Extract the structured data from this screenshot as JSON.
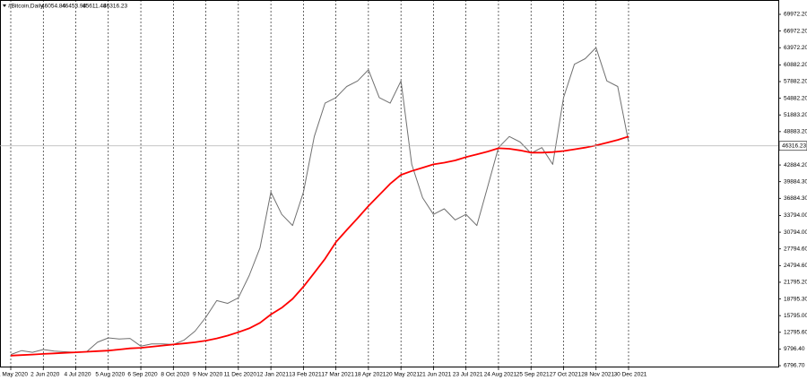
{
  "chart_data": {
    "type": "line",
    "title": "#Bitcoin,Daily",
    "ohlc_values": [
      46054.84,
      46453.98,
      45611.48,
      46316.23
    ],
    "categories": [
      "1 May 2020",
      null,
      null,
      "2 Jun 2020",
      null,
      null,
      "4 Jul 2020",
      null,
      null,
      "5 Aug 2020",
      null,
      null,
      "6 Sep 2020",
      null,
      null,
      "8 Oct 2020",
      null,
      null,
      "9 Nov 2020",
      null,
      null,
      "11 Dec 2020",
      null,
      null,
      "12 Jan 2021",
      null,
      null,
      "13 Feb 2021",
      null,
      null,
      "17 Mar 2021",
      null,
      null,
      "18 Apr 2021",
      null,
      null,
      "20 May 2021",
      null,
      null,
      "21 Jun 2021",
      null,
      null,
      "23 Jul 2021",
      null,
      null,
      "24 Aug 2021",
      null,
      null,
      "25 Sep 2021",
      null,
      null,
      "27 Oct 2021",
      null,
      null,
      "28 Nov 2021",
      null,
      null,
      "30 Dec 2021"
    ],
    "series": [
      {
        "color": "#707070",
        "values": [
          8800,
          9500,
          9200,
          9700,
          9400,
          9300,
          9200,
          9300,
          11000,
          11800,
          11600,
          11700,
          10300,
          10700,
          10700,
          10600,
          11400,
          13000,
          15500,
          18500,
          18000,
          19000,
          23000,
          28000,
          38000,
          34000,
          32000,
          38000,
          48000,
          54000,
          55000,
          57000,
          58000,
          60000,
          55000,
          54000,
          58000,
          43000,
          37000,
          34000,
          35000,
          33000,
          34000,
          32000,
          39000,
          46000,
          48000,
          47000,
          45000,
          46000,
          43000,
          55000,
          61000,
          62000,
          64000,
          58000,
          57000,
          47000
        ]
      },
      {
        "color": "#ff0000",
        "values": [
          8600,
          8700,
          8800,
          8900,
          9000,
          9100,
          9200,
          9300,
          9400,
          9500,
          9700,
          9900,
          10000,
          10200,
          10400,
          10600,
          10800,
          11000,
          11300,
          11700,
          12200,
          12800,
          13500,
          14500,
          16000,
          17200,
          18800,
          21000,
          23500,
          26000,
          29000,
          31200,
          33300,
          35500,
          37500,
          39500,
          41100,
          41800,
          42400,
          43000,
          43300,
          43700,
          44300,
          44800,
          45300,
          45900,
          45800,
          45500,
          45100,
          45100,
          45200,
          45400,
          45700,
          46000,
          46400,
          46900,
          47400,
          48000
        ]
      }
    ],
    "current_price": {
      "value": 46316.23,
      "label": "46316.23"
    },
    "ylim": [
      6474,
      72551
    ],
    "yticks": [
      {
        "value": 69972.2,
        "label": "69972.20"
      },
      {
        "value": 66972.2,
        "label": "66972.20"
      },
      {
        "value": 63972.2,
        "label": "63972.20"
      },
      {
        "value": 60882.2,
        "label": "60882.20"
      },
      {
        "value": 57882.2,
        "label": "57882.20"
      },
      {
        "value": 54882.2,
        "label": "54882.20"
      },
      {
        "value": 51883.2,
        "label": "51883.20"
      },
      {
        "value": 48883.2,
        "label": "48883.20"
      },
      {
        "value": 42884.2,
        "label": "42884.20"
      },
      {
        "value": 39884.3,
        "label": "39884.30"
      },
      {
        "value": 36884.3,
        "label": "36884.30"
      },
      {
        "value": 33794.0,
        "label": "33794.00"
      },
      {
        "value": 30794.0,
        "label": "30794.00"
      },
      {
        "value": 27794.6,
        "label": "27794.60"
      },
      {
        "value": 24794.6,
        "label": "24794.60"
      },
      {
        "value": 21795.2,
        "label": "21795.20"
      },
      {
        "value": 18795.3,
        "label": "18795.30"
      },
      {
        "value": 15795.0,
        "label": "15795.00"
      },
      {
        "value": 12795.6,
        "label": "12795.60"
      },
      {
        "value": 9796.4,
        "label": "9796.40"
      },
      {
        "value": 6796.7,
        "label": "6796.70"
      }
    ]
  }
}
